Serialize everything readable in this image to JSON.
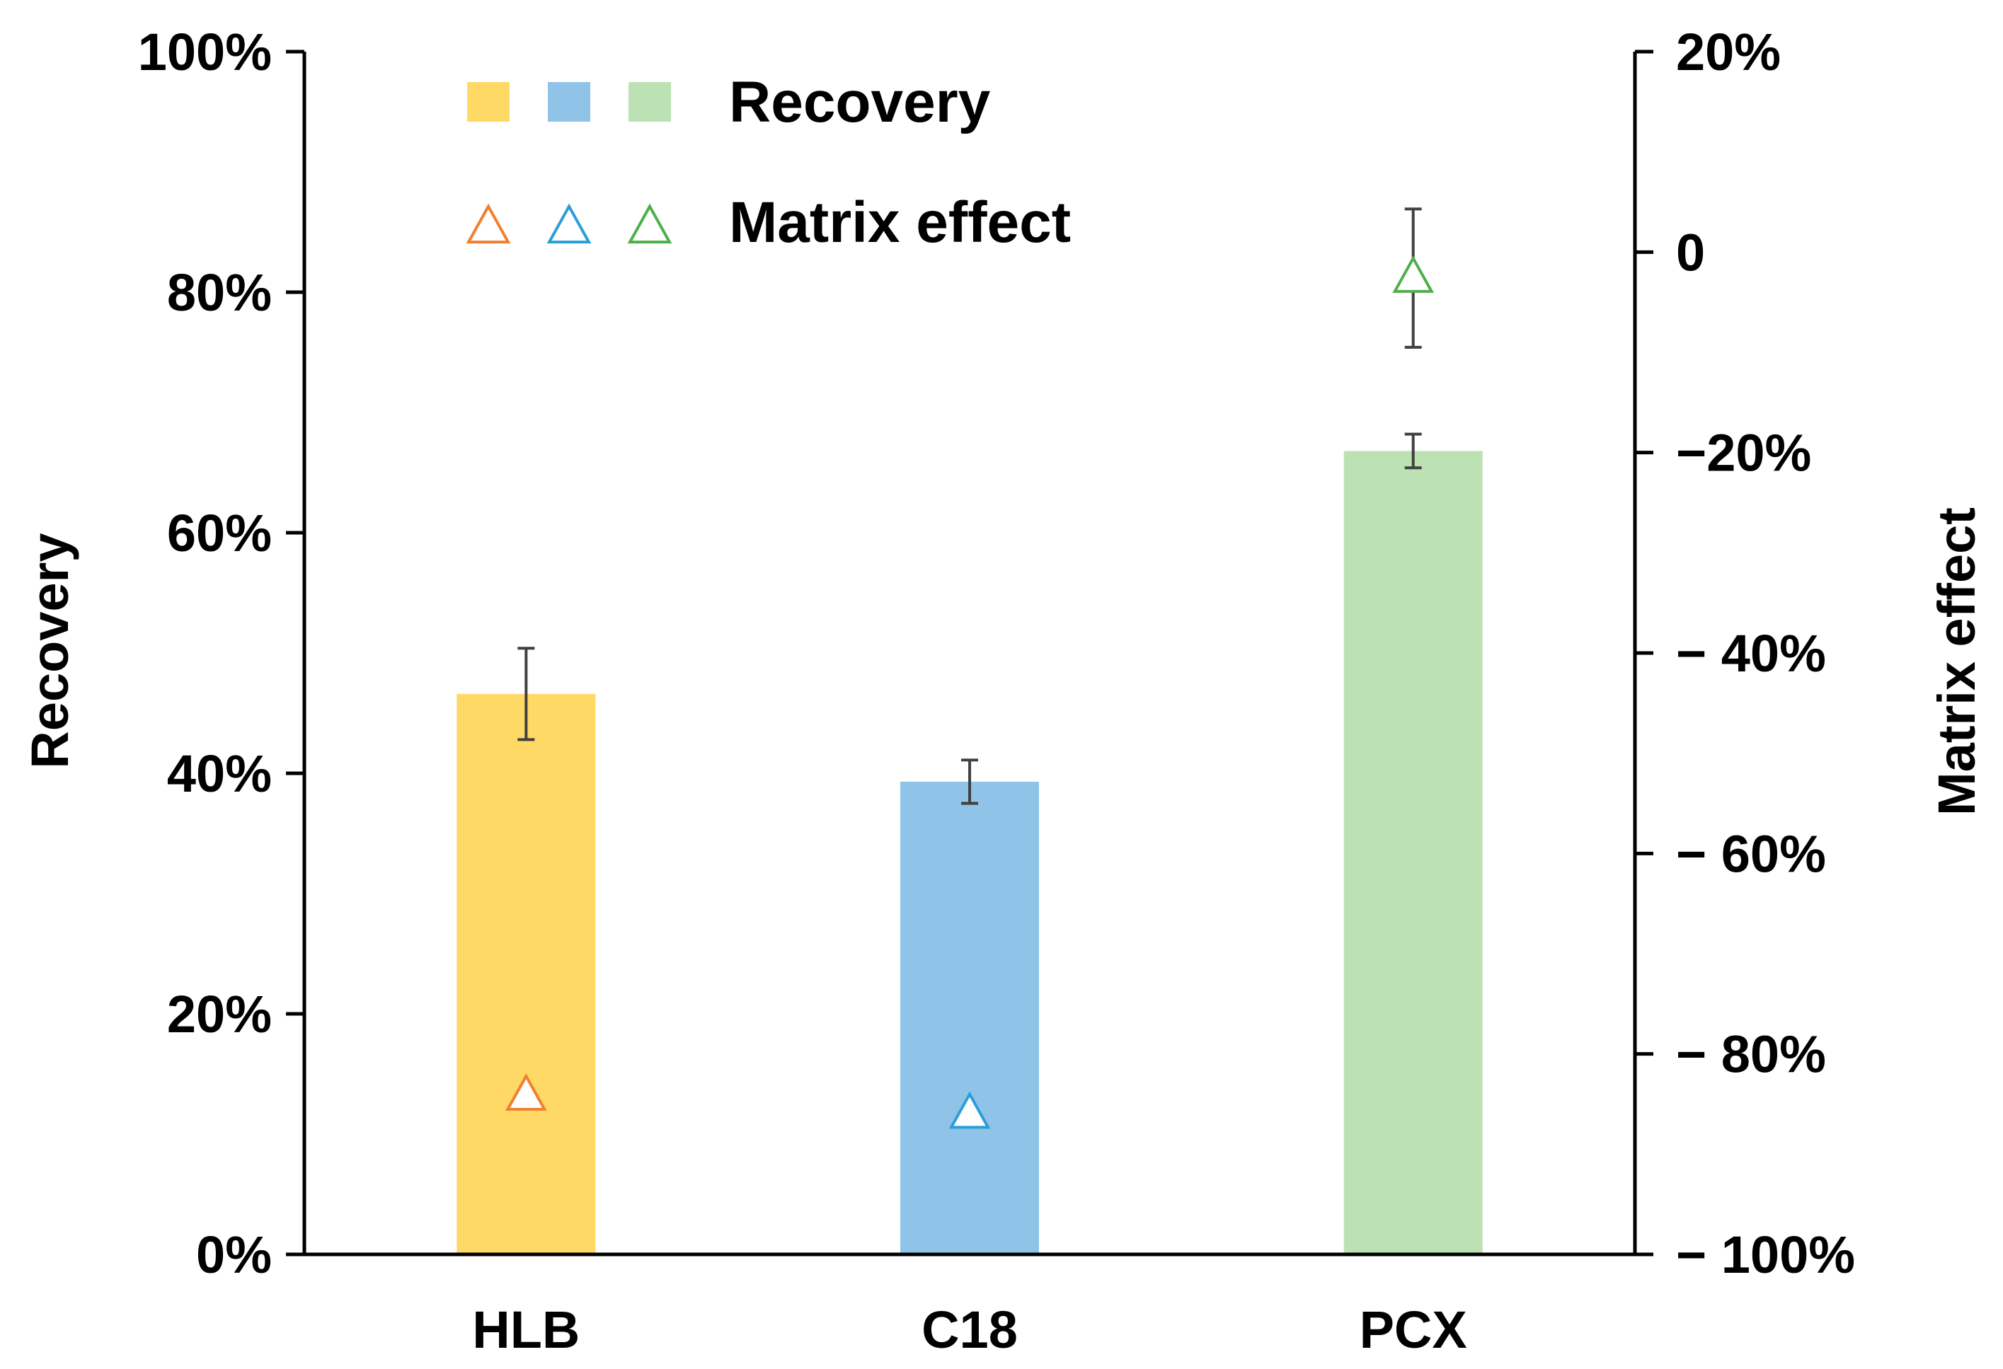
{
  "chart_data": {
    "type": "bar",
    "categories": [
      "HLB",
      "C18",
      "PCX"
    ],
    "series": [
      {
        "name": "Recovery",
        "axis": "left",
        "values": [
          46.6,
          39.3,
          66.8
        ],
        "errors": [
          3.8,
          1.8,
          1.4
        ],
        "colors": [
          "#FFD966",
          "#8FC4E8",
          "#BCE2B4"
        ]
      },
      {
        "name": "Matrix effect",
        "axis": "right",
        "marker": "triangle",
        "values": [
          -84.2,
          -86.0,
          -2.6
        ],
        "errors": [
          0.0,
          0.0,
          6.9
        ],
        "colors": [
          "#F08030",
          "#2B9ED8",
          "#4FAF4A"
        ]
      }
    ],
    "left_axis": {
      "label": "Recovery",
      "ylim": [
        0,
        100
      ],
      "ticks": [
        0,
        20,
        40,
        60,
        80,
        100
      ],
      "tick_labels": [
        "0%",
        "20%",
        "40%",
        "60%",
        "80%",
        "100%"
      ]
    },
    "right_axis": {
      "label": "Matrix effect",
      "ylim": [
        -100,
        20
      ],
      "ticks": [
        20,
        0,
        -20,
        -40,
        -60,
        -80,
        -100
      ],
      "tick_labels": [
        "20%",
        "0",
        "−20%",
        "− 40%",
        "− 60%",
        "− 80%",
        "− 100%"
      ]
    },
    "legend": {
      "placement": "top-left",
      "entries": [
        {
          "label": "Recovery",
          "kind": "bar-swatches",
          "colors": [
            "#FFD966",
            "#8FC4E8",
            "#BCE2B4"
          ]
        },
        {
          "label": "Matrix effect",
          "kind": "triangle-markers",
          "colors": [
            "#F08030",
            "#2B9ED8",
            "#4FAF4A"
          ]
        }
      ]
    },
    "error_bar_color": "#404040",
    "axis_color": "#000000"
  }
}
